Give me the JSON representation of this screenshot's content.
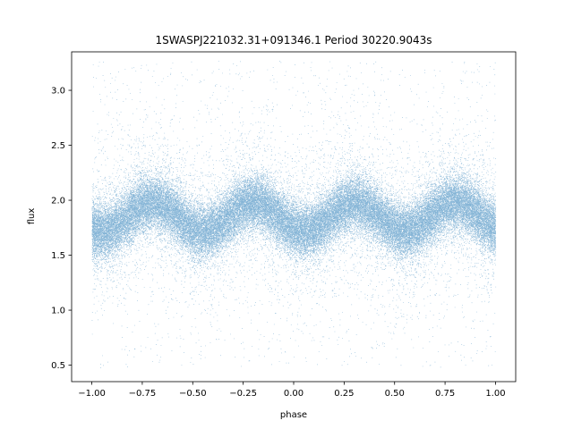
{
  "chart_data": {
    "type": "scatter",
    "title": "1SWASPJ221032.31+091346.1 Period 30220.9043s",
    "xlabel": "phase",
    "ylabel": "flux",
    "xlim": [
      -1.1,
      1.1
    ],
    "ylim": [
      0.35,
      3.35
    ],
    "x_ticks": [
      -1.0,
      -0.75,
      -0.5,
      -0.25,
      0.0,
      0.25,
      0.5,
      0.75,
      1.0
    ],
    "x_tick_labels": [
      "−1.00",
      "−0.75",
      "−0.50",
      "−0.25",
      "0.00",
      "0.25",
      "0.50",
      "0.75",
      "1.00"
    ],
    "y_ticks": [
      0.5,
      1.0,
      1.5,
      2.0,
      2.5,
      3.0
    ],
    "y_tick_labels": [
      "0.5",
      "1.0",
      "1.5",
      "2.0",
      "2.5",
      "3.0"
    ],
    "grid": false,
    "legend": "none",
    "series": [
      {
        "color": "#1f77b4",
        "x_range": [
          -1.0,
          1.0
        ],
        "y_range": [
          0.48,
          3.27
        ],
        "approx_points": 60000,
        "baseline_flux": 1.85,
        "amplitude": 0.13,
        "cycles_per_phase_unit": 2,
        "maxima_phase": [
          -0.7,
          -0.2,
          0.3,
          0.8
        ],
        "minima_phase": [
          -0.45,
          0.05,
          0.55
        ],
        "typical_scatter": 0.2
      }
    ]
  }
}
